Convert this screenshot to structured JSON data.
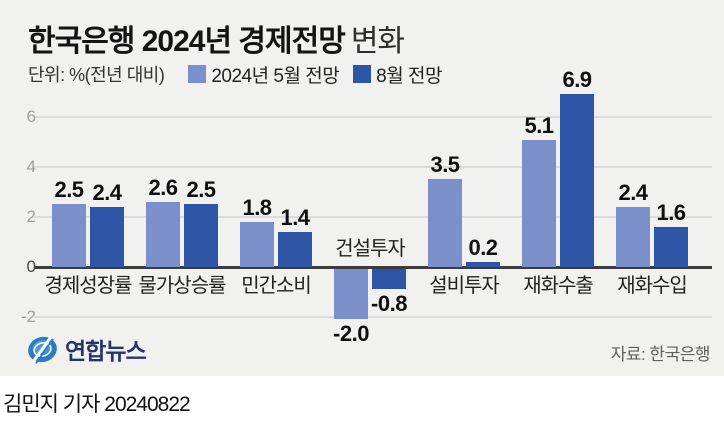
{
  "header": {
    "title_strong": "한국은행 2024년 경제전망",
    "title_light": "변화",
    "unit_label": "단위: %(전년 대비)"
  },
  "legend": [
    {
      "label": "2024년 5월 전망",
      "color": "#7b90ca"
    },
    {
      "label": "8월 전망",
      "color": "#2e55a5"
    }
  ],
  "chart_data": {
    "type": "bar",
    "title": "한국은행 2024년 경제전망 변화",
    "unit": "%(전년 대비)",
    "categories": [
      "경제성장률",
      "물가상승률",
      "민간소비",
      "건설투자",
      "설비투자",
      "재화수출",
      "재화수입"
    ],
    "series": [
      {
        "name": "2024년 5월 전망",
        "color": "#7b90ca",
        "values": [
          2.5,
          2.6,
          1.8,
          -2.0,
          3.5,
          5.1,
          2.4
        ]
      },
      {
        "name": "8월 전망",
        "color": "#2e55a5",
        "values": [
          2.4,
          2.5,
          1.4,
          -0.8,
          0.2,
          6.9,
          1.6
        ]
      }
    ],
    "yticks": [
      6,
      4,
      2,
      0,
      -2
    ],
    "ylim": [
      -2.6,
      7.2
    ],
    "grid": true,
    "legend_position": "top",
    "value_labels": true
  },
  "branding": {
    "logo_text": "연합뉴스",
    "logo_color": "#2b7dc0",
    "logo_text_color": "#27356d"
  },
  "source": "자료: 한국은행",
  "footer": "김민지 기자 20240822"
}
